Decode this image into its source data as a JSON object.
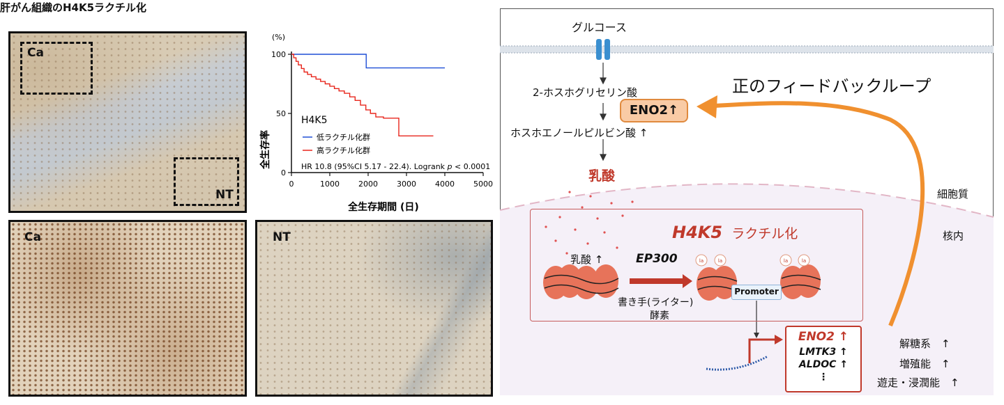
{
  "left": {
    "title": "肝がん組織のH4K5ラクチル化",
    "panels": {
      "top_ca": "Ca",
      "top_nt": "NT",
      "bottom_ca": "Ca",
      "bottom_nt": "NT"
    }
  },
  "chart_data": {
    "type": "line",
    "subtype": "kaplan-meier",
    "ylabel": "全生存率",
    "yunit": "(%)",
    "xlabel": "全生存期間 (日)",
    "xlim": [
      0,
      5000
    ],
    "ylim": [
      0,
      100
    ],
    "xticks": [
      "0",
      "1000",
      "2000",
      "3000",
      "4000",
      "5000"
    ],
    "yticks": [
      "0",
      "50",
      "100"
    ],
    "legend_title": "H4K5",
    "legend_placement": "bottom-right",
    "stats_prefix": "HR 10.8 (95%CI 5.17 - 22.4). Logrank ",
    "stats_p": "p",
    "stats_suffix": " < 0.0001",
    "series": [
      {
        "name": "低ラクチル化群",
        "color": "#1f4fd6",
        "x": [
          0,
          1950,
          1950,
          2050,
          4000
        ],
        "y": [
          100,
          100,
          88.5,
          88.5,
          88.5
        ]
      },
      {
        "name": "高ラクチル化群",
        "color": "#e8261c",
        "x": [
          0,
          60,
          120,
          180,
          260,
          330,
          420,
          520,
          640,
          760,
          880,
          1000,
          1120,
          1240,
          1380,
          1520,
          1660,
          1800,
          1940,
          2060,
          2200,
          2400,
          2800,
          2800,
          3700
        ],
        "y": [
          100,
          97,
          94,
          91,
          88,
          85,
          83,
          81,
          79,
          77,
          75,
          73,
          71,
          69,
          67,
          64,
          61,
          57,
          53,
          50,
          47,
          46,
          46,
          31,
          31
        ]
      }
    ]
  },
  "diagram": {
    "glucose": "グルコース",
    "pg": "2-ホスホグリセリン酸",
    "pep": "ホスホエノールピルビン酸 ↑",
    "eno2_box": "ENO2↑",
    "lactate": "乳酸",
    "loop_title": "正のフィードバックループ",
    "cytoplasm": "細胞質",
    "nucleus": "核内",
    "h4k5_name": "H4K5",
    "h4k5_rest": "ラクチル化",
    "lactate_up": "乳酸 ↑",
    "ep300": "EP300",
    "writer_line1": "書き手(ライター)",
    "writer_line2": "酵素",
    "promoter": "Promoter",
    "la_mark": "la",
    "genes": [
      "ENO2 ↑",
      "LMTK3 ↑",
      "ALDOC ↑",
      "⋮"
    ],
    "effects": [
      "解糖系　↑",
      "増殖能　↑",
      "遊走・浸潤能　↑"
    ],
    "colors": {
      "accent_red": "#c0392b",
      "orange": "#f0902f",
      "nucleosome": "#e7735a"
    }
  }
}
